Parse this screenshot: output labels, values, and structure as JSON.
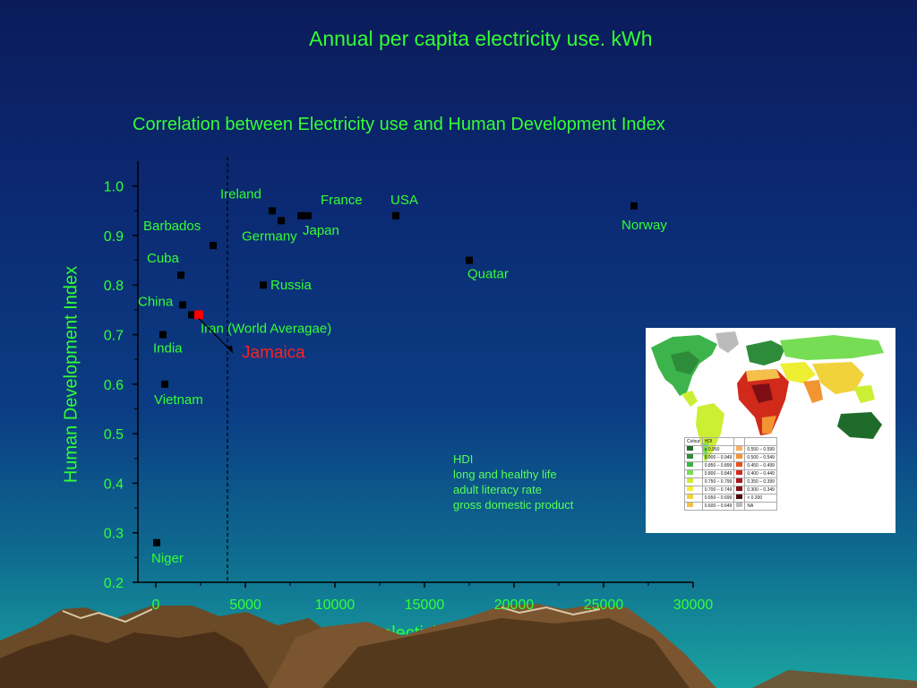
{
  "page_title": "Annual per capita electricity use. kWh",
  "chart_data": {
    "type": "scatter",
    "title": "Correlation between Electricity use and Human Development Index",
    "xlabel": "Anual per capita electicity use, kWh",
    "ylabel": "Human Development Index",
    "xlim": [
      -1000,
      30000
    ],
    "ylim": [
      0.2,
      1.05
    ],
    "x_ticks": [
      0,
      5000,
      10000,
      15000,
      20000,
      25000,
      30000
    ],
    "y_ticks": [
      0.2,
      0.3,
      0.4,
      0.5,
      0.6,
      0.7,
      0.8,
      0.9,
      1.0
    ],
    "reference_line_x": 4000,
    "points": [
      {
        "label": "Ireland",
        "x": 6500,
        "y": 0.95
      },
      {
        "label": "Germany",
        "x": 7000,
        "y": 0.93
      },
      {
        "label": "France",
        "x": 8100,
        "y": 0.94
      },
      {
        "label": "Japan",
        "x": 8500,
        "y": 0.94
      },
      {
        "label": "USA",
        "x": 13400,
        "y": 0.94
      },
      {
        "label": "Norway",
        "x": 26700,
        "y": 0.96
      },
      {
        "label": "Quatar",
        "x": 17500,
        "y": 0.85
      },
      {
        "label": "Barbados",
        "x": 3200,
        "y": 0.88
      },
      {
        "label": "Cuba",
        "x": 1400,
        "y": 0.82
      },
      {
        "label": "Russia",
        "x": 6000,
        "y": 0.8
      },
      {
        "label": "China",
        "x": 1500,
        "y": 0.76
      },
      {
        "label": "",
        "x": 2000,
        "y": 0.74
      },
      {
        "label": "Iran (World Averagae)",
        "x": 2400,
        "y": 0.74,
        "highlight": true
      },
      {
        "label": "India",
        "x": 400,
        "y": 0.7
      },
      {
        "label": "Vietnam",
        "x": 500,
        "y": 0.6
      },
      {
        "label": "Niger",
        "x": 50,
        "y": 0.28
      }
    ],
    "annotation": {
      "label": "Jamaica",
      "x": 2400,
      "y": 0.74,
      "label_x": 5000,
      "label_y": 0.66
    },
    "colors": {
      "text": "#33ff33",
      "point": "#000000",
      "highlight": "#ff0000",
      "annotation": "#ff2020",
      "axis": "#000000"
    }
  },
  "note": {
    "lines": [
      "HDI",
      "long and healthy life",
      "adult literacy rate",
      "gross domestic product"
    ]
  },
  "map_legend": {
    "headers": [
      "Colour",
      "HDI"
    ],
    "left": [
      {
        "color": "#1f6b2a",
        "range": "≥ 0.950"
      },
      {
        "color": "#2e8b3a",
        "range": "0.900 – 0.949"
      },
      {
        "color": "#3cb44b",
        "range": "0.850 – 0.899"
      },
      {
        "color": "#77dd55",
        "range": "0.800 – 0.849"
      },
      {
        "color": "#ccee33",
        "range": "0.750 – 0.799"
      },
      {
        "color": "#eeee33",
        "range": "0.700 – 0.749"
      },
      {
        "color": "#f2d23b",
        "range": "0.650 – 0.699"
      },
      {
        "color": "#f5c04a",
        "range": "0.600 – 0.649"
      }
    ],
    "right": [
      {
        "color": "#f7b05b",
        "range": "0.550 – 0.599"
      },
      {
        "color": "#f39433",
        "range": "0.500 – 0.549"
      },
      {
        "color": "#e8501d",
        "range": "0.450 – 0.499"
      },
      {
        "color": "#d12a1a",
        "range": "0.400 – 0.449"
      },
      {
        "color": "#a8151b",
        "range": "0.350 – 0.399"
      },
      {
        "color": "#7d0f14",
        "range": "0.300 – 0.349"
      },
      {
        "color": "#4a0a0a",
        "range": "< 0.300"
      },
      {
        "color": "#bbbbbb",
        "range": "NA"
      }
    ]
  }
}
